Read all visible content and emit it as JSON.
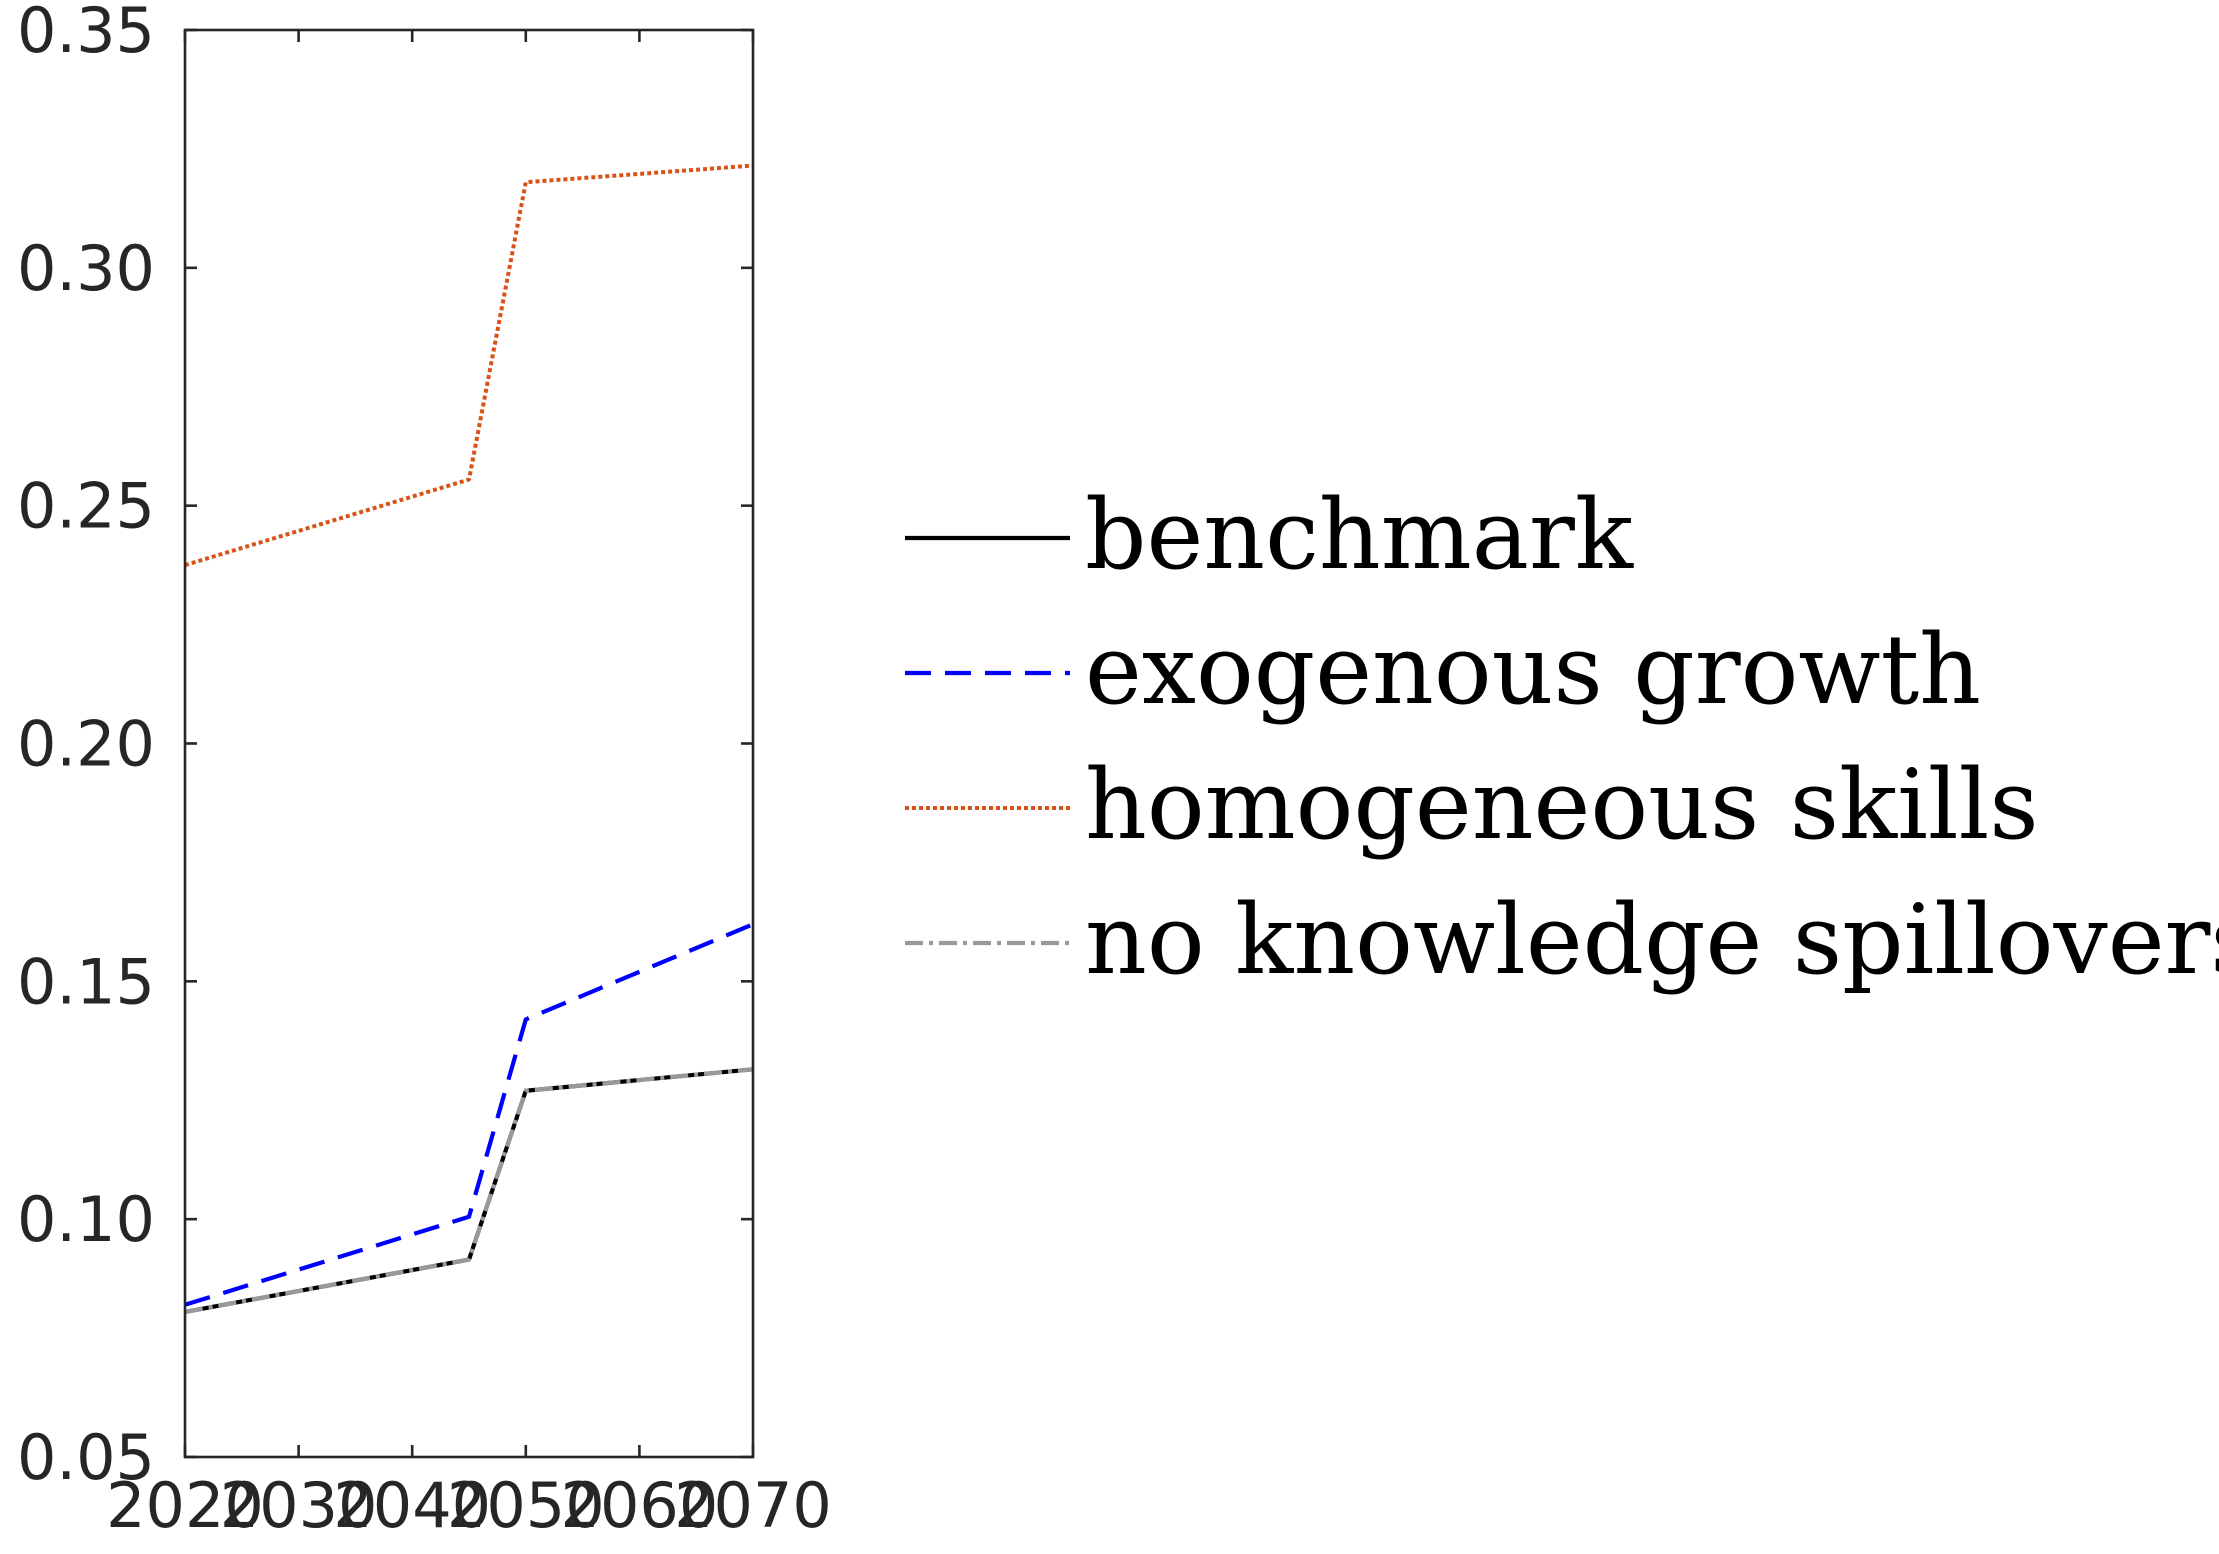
{
  "chart_data": {
    "type": "line",
    "title": "",
    "xlabel": "",
    "ylabel": "",
    "xlim": [
      2020,
      2070
    ],
    "ylim": [
      0.05,
      0.35
    ],
    "xticks": [
      2020,
      2030,
      2040,
      2050,
      2060,
      2070
    ],
    "xtick_labels": [
      "2020",
      "2030",
      "2040",
      "2050",
      "2060",
      "2070"
    ],
    "yticks": [
      0.05,
      0.1,
      0.15,
      0.2,
      0.25,
      0.3,
      0.35
    ],
    "ytick_labels": [
      "0.05",
      "0.10",
      "0.15",
      "0.20",
      "0.25",
      "0.30",
      "0.35"
    ],
    "grid": false,
    "legend_position": "outside-right",
    "series": [
      {
        "name": "benchmark",
        "color": "#000000",
        "dash": "solid",
        "x": [
          2020,
          2045,
          2050,
          2070
        ],
        "y": [
          0.0805,
          0.0915,
          0.127,
          0.1315
        ]
      },
      {
        "name": "exogenous growth",
        "color": "#0000ff",
        "dash": "dashed",
        "x": [
          2020,
          2045,
          2050,
          2070
        ],
        "y": [
          0.082,
          0.1005,
          0.142,
          0.162
        ]
      },
      {
        "name": "homogeneous skills",
        "color": "#d95319",
        "dash": "dotted",
        "x": [
          2020,
          2045,
          2050,
          2070
        ],
        "y": [
          0.2375,
          0.2555,
          0.318,
          0.3215
        ]
      },
      {
        "name": "no knowledge spillovers",
        "color": "#999999",
        "dash": "dashdot",
        "x": [
          2020,
          2045,
          2050,
          2070
        ],
        "y": [
          0.0805,
          0.0915,
          0.127,
          0.1315
        ]
      }
    ]
  }
}
